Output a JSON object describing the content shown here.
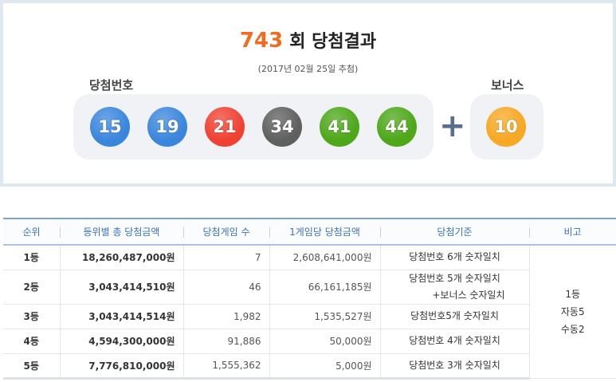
{
  "draw": {
    "round": "743",
    "title_suffix": "회 당첨결과",
    "date": "(2017년 02월 25일 추첨)",
    "main_label": "당첨번호",
    "bonus_label": "보너스",
    "numbers": [
      {
        "value": "15",
        "color": "#3b86dd"
      },
      {
        "value": "19",
        "color": "#3b86dd"
      },
      {
        "value": "21",
        "color": "#f04232"
      },
      {
        "value": "34",
        "color": "#5f5f5f"
      },
      {
        "value": "41",
        "color": "#4ea81a"
      },
      {
        "value": "44",
        "color": "#4ea81a"
      }
    ],
    "plus": "+",
    "bonus": {
      "value": "10",
      "color": "#f7a824"
    }
  },
  "table": {
    "headers": [
      "순위",
      "등위별 총 당첨금액",
      "당첨게임 수",
      "1게임당 당첨금액",
      "당첨기준",
      "비고"
    ],
    "rows": [
      {
        "rank": "1등",
        "total": "18,260,487,000원",
        "count": "7",
        "per": "2,608,641,000원",
        "criteria": "당첨번호 6개 숫자일치",
        "criteria2": ""
      },
      {
        "rank": "2등",
        "total": "3,043,414,510원",
        "count": "46",
        "per": "66,161,185원",
        "criteria": "당첨번호 5개 숫자일치",
        "criteria2": "+보너스 숫자일치"
      },
      {
        "rank": "3등",
        "total": "3,043,414,514원",
        "count": "1,982",
        "per": "1,535,527원",
        "criteria": "당첨번호5개 숫자일치",
        "criteria2": ""
      },
      {
        "rank": "4등",
        "total": "4,594,300,000원",
        "count": "91,886",
        "per": "50,000원",
        "criteria": "당첨번호 4개 숫자일치",
        "criteria2": ""
      },
      {
        "rank": "5등",
        "total": "7,776,810,000원",
        "count": "1,555,362",
        "per": "5,000원",
        "criteria": "당첨번호 3개 숫자일치",
        "criteria2": ""
      }
    ],
    "note": [
      "1등",
      "자동5",
      "수동2"
    ]
  }
}
